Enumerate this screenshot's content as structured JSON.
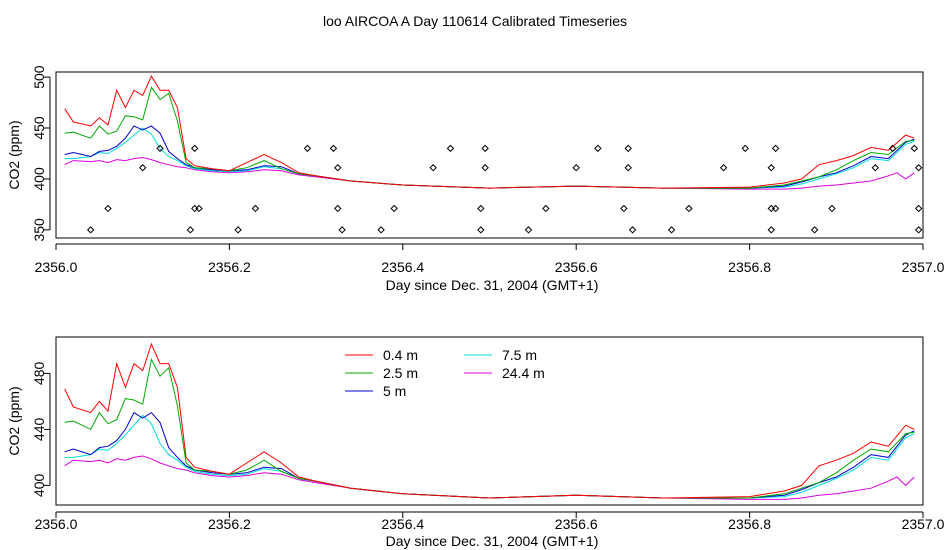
{
  "title": "loo AIRCOA A  Day 110614  Calibrated Timeseries",
  "chart_data": [
    {
      "type": "line",
      "xlabel": "Day since Dec. 31, 2004 (GMT+1)",
      "ylabel": "CO2 (ppm)",
      "xlim": [
        2356.0,
        2357.0
      ],
      "ylim": [
        342,
        505
      ],
      "x_ticks": [
        2356.0,
        2356.2,
        2356.4,
        2356.6,
        2356.8,
        2357.0
      ],
      "x_tick_labels": [
        "2356.0",
        "2356.2",
        "2356.4",
        "2356.6",
        "2356.8",
        "2357.0"
      ],
      "y_ticks": [
        350,
        400,
        450,
        500
      ],
      "y_tick_labels": [
        "350",
        "400",
        "450",
        "500"
      ],
      "series": [
        {
          "name": "0.4 m",
          "color": "#ff0000",
          "x": [
            2356.01,
            2356.02,
            2356.04,
            2356.05,
            2356.06,
            2356.07,
            2356.08,
            2356.09,
            2356.1,
            2356.11,
            2356.12,
            2356.13,
            2356.14,
            2356.15,
            2356.16,
            2356.18,
            2356.2,
            2356.22,
            2356.24,
            2356.26,
            2356.28,
            2356.3,
            2356.34,
            2356.4,
            2356.5,
            2356.6,
            2356.7,
            2356.8,
            2356.84,
            2356.86,
            2356.88,
            2356.9,
            2356.92,
            2356.94,
            2356.96,
            2356.98,
            2356.99
          ],
          "y": [
            469,
            456,
            452,
            460,
            453,
            487,
            470,
            487,
            482,
            501,
            487,
            487,
            470,
            420,
            413,
            410,
            408,
            416,
            424,
            416,
            406,
            403,
            398,
            394,
            391,
            393,
            391,
            392,
            396,
            400,
            414,
            418,
            423,
            431,
            428,
            443,
            440
          ]
        },
        {
          "name": "2.5 m",
          "color": "#00aa00",
          "x": [
            2356.01,
            2356.02,
            2356.04,
            2356.05,
            2356.06,
            2356.07,
            2356.08,
            2356.09,
            2356.1,
            2356.11,
            2356.12,
            2356.13,
            2356.14,
            2356.15,
            2356.16,
            2356.18,
            2356.2,
            2356.22,
            2356.24,
            2356.26,
            2356.28,
            2356.3,
            2356.34,
            2356.4,
            2356.5,
            2356.6,
            2356.7,
            2356.8,
            2356.84,
            2356.86,
            2356.88,
            2356.9,
            2356.92,
            2356.94,
            2356.96,
            2356.98,
            2356.99
          ],
          "y": [
            445,
            446,
            440,
            452,
            444,
            447,
            462,
            461,
            458,
            490,
            478,
            484,
            457,
            416,
            411,
            410,
            408,
            411,
            418,
            410,
            405,
            403,
            398,
            394,
            391,
            393,
            391,
            391,
            394,
            398,
            402,
            409,
            418,
            426,
            424,
            437,
            438
          ]
        },
        {
          "name": "5 m",
          "color": "#0000cc",
          "x": [
            2356.01,
            2356.02,
            2356.04,
            2356.05,
            2356.06,
            2356.07,
            2356.08,
            2356.09,
            2356.1,
            2356.11,
            2356.12,
            2356.13,
            2356.14,
            2356.15,
            2356.16,
            2356.18,
            2356.2,
            2356.22,
            2356.24,
            2356.26,
            2356.28,
            2356.3,
            2356.34,
            2356.4,
            2356.5,
            2356.6,
            2356.7,
            2356.8,
            2356.84,
            2356.86,
            2356.88,
            2356.9,
            2356.92,
            2356.94,
            2356.96,
            2356.98,
            2356.99
          ],
          "y": [
            424,
            426,
            422,
            427,
            428,
            432,
            440,
            452,
            448,
            452,
            445,
            427,
            420,
            414,
            411,
            409,
            408,
            409,
            413,
            412,
            405,
            403,
            398,
            394,
            391,
            393,
            391,
            391,
            393,
            397,
            402,
            406,
            413,
            422,
            420,
            436,
            439
          ]
        },
        {
          "name": "7.5 m",
          "color": "#00dddd",
          "x": [
            2356.01,
            2356.02,
            2356.04,
            2356.05,
            2356.06,
            2356.07,
            2356.08,
            2356.09,
            2356.1,
            2356.11,
            2356.12,
            2356.13,
            2356.14,
            2356.15,
            2356.16,
            2356.18,
            2356.2,
            2356.22,
            2356.24,
            2356.26,
            2356.28,
            2356.3,
            2356.34,
            2356.4,
            2356.5,
            2356.6,
            2356.7,
            2356.8,
            2356.84,
            2356.86,
            2356.88,
            2356.9,
            2356.92,
            2356.94,
            2356.96,
            2356.98,
            2356.99
          ],
          "y": [
            420,
            420,
            422,
            426,
            425,
            430,
            436,
            443,
            450,
            444,
            430,
            422,
            418,
            413,
            410,
            408,
            407,
            408,
            412,
            410,
            405,
            403,
            398,
            394,
            391,
            393,
            391,
            391,
            392,
            395,
            400,
            405,
            411,
            420,
            418,
            434,
            437
          ]
        },
        {
          "name": "24.4 m",
          "color": "#dd00dd",
          "x": [
            2356.01,
            2356.02,
            2356.04,
            2356.05,
            2356.06,
            2356.07,
            2356.08,
            2356.09,
            2356.1,
            2356.11,
            2356.12,
            2356.13,
            2356.14,
            2356.15,
            2356.16,
            2356.18,
            2356.2,
            2356.22,
            2356.24,
            2356.26,
            2356.28,
            2356.3,
            2356.34,
            2356.4,
            2356.5,
            2356.6,
            2356.7,
            2356.8,
            2356.84,
            2356.86,
            2356.88,
            2356.9,
            2356.92,
            2356.94,
            2356.96,
            2356.97,
            2356.98,
            2356.99
          ],
          "y": [
            414,
            418,
            417,
            418,
            416,
            419,
            418,
            420,
            421,
            419,
            416,
            414,
            412,
            411,
            409,
            407,
            406,
            407,
            409,
            408,
            404,
            402,
            398,
            394,
            391,
            393,
            391,
            390,
            390,
            391,
            393,
            394,
            396,
            398,
            403,
            406,
            400,
            406
          ]
        }
      ],
      "markers": {
        "symbol": "diamond-open",
        "color": "#000000",
        "x": [
          2356.04,
          2356.06,
          2356.1,
          2356.12,
          2356.155,
          2356.16,
          2356.16,
          2356.165,
          2356.21,
          2356.23,
          2356.29,
          2356.32,
          2356.325,
          2356.325,
          2356.33,
          2356.375,
          2356.39,
          2356.435,
          2356.455,
          2356.49,
          2356.49,
          2356.495,
          2356.495,
          2356.545,
          2356.565,
          2356.6,
          2356.625,
          2356.655,
          2356.66,
          2356.66,
          2356.665,
          2356.71,
          2356.73,
          2356.77,
          2356.795,
          2356.825,
          2356.825,
          2356.825,
          2356.83,
          2356.83,
          2356.875,
          2356.895,
          2356.945,
          2356.965,
          2356.99,
          2356.995,
          2356.995,
          2356.995
        ],
        "y": [
          350,
          371,
          411,
          430,
          350,
          371,
          430,
          371,
          350,
          371,
          430,
          430,
          371,
          411,
          350,
          350,
          371,
          411,
          430,
          350,
          371,
          411,
          430,
          350,
          371,
          411,
          430,
          371,
          411,
          430,
          350,
          350,
          371,
          411,
          430,
          350,
          371,
          411,
          430,
          371,
          350,
          371,
          411,
          430,
          430,
          411,
          371,
          350
        ]
      }
    },
    {
      "type": "line",
      "xlabel": "Day since Dec. 31, 2004 (GMT+1)",
      "ylabel": "CO2 (ppm)",
      "xlim": [
        2356.0,
        2357.0
      ],
      "ylim": [
        386,
        506
      ],
      "x_ticks": [
        2356.0,
        2356.2,
        2356.4,
        2356.6,
        2356.8,
        2357.0
      ],
      "x_tick_labels": [
        "2356.0",
        "2356.2",
        "2356.4",
        "2356.6",
        "2356.8",
        "2357.0"
      ],
      "y_ticks": [
        400,
        440,
        480
      ],
      "y_tick_labels": [
        "400",
        "440",
        "480"
      ],
      "legend": {
        "position": "top-center",
        "columns": 2
      },
      "series": [
        {
          "name": "0.4 m",
          "color": "#ff0000",
          "x": [
            2356.01,
            2356.02,
            2356.04,
            2356.05,
            2356.06,
            2356.07,
            2356.08,
            2356.09,
            2356.1,
            2356.11,
            2356.12,
            2356.13,
            2356.14,
            2356.15,
            2356.16,
            2356.18,
            2356.2,
            2356.22,
            2356.24,
            2356.26,
            2356.28,
            2356.3,
            2356.34,
            2356.4,
            2356.5,
            2356.6,
            2356.7,
            2356.8,
            2356.84,
            2356.86,
            2356.88,
            2356.9,
            2356.92,
            2356.94,
            2356.96,
            2356.98,
            2356.99
          ],
          "y": [
            469,
            456,
            452,
            460,
            453,
            487,
            470,
            487,
            482,
            501,
            487,
            487,
            470,
            420,
            413,
            410,
            408,
            416,
            424,
            416,
            406,
            403,
            398,
            394,
            391,
            393,
            391,
            392,
            396,
            400,
            414,
            418,
            423,
            431,
            428,
            443,
            440
          ]
        },
        {
          "name": "2.5 m",
          "color": "#00aa00",
          "x": [
            2356.01,
            2356.02,
            2356.04,
            2356.05,
            2356.06,
            2356.07,
            2356.08,
            2356.09,
            2356.1,
            2356.11,
            2356.12,
            2356.13,
            2356.14,
            2356.15,
            2356.16,
            2356.18,
            2356.2,
            2356.22,
            2356.24,
            2356.26,
            2356.28,
            2356.3,
            2356.34,
            2356.4,
            2356.5,
            2356.6,
            2356.7,
            2356.8,
            2356.84,
            2356.86,
            2356.88,
            2356.9,
            2356.92,
            2356.94,
            2356.96,
            2356.98,
            2356.99
          ],
          "y": [
            445,
            446,
            440,
            452,
            444,
            447,
            462,
            461,
            458,
            490,
            478,
            484,
            457,
            416,
            411,
            410,
            408,
            411,
            418,
            410,
            405,
            403,
            398,
            394,
            391,
            393,
            391,
            391,
            394,
            398,
            402,
            409,
            418,
            426,
            424,
            437,
            438
          ]
        },
        {
          "name": "5 m",
          "color": "#0000cc",
          "x": [
            2356.01,
            2356.02,
            2356.04,
            2356.05,
            2356.06,
            2356.07,
            2356.08,
            2356.09,
            2356.1,
            2356.11,
            2356.12,
            2356.13,
            2356.14,
            2356.15,
            2356.16,
            2356.18,
            2356.2,
            2356.22,
            2356.24,
            2356.26,
            2356.28,
            2356.3,
            2356.34,
            2356.4,
            2356.5,
            2356.6,
            2356.7,
            2356.8,
            2356.84,
            2356.86,
            2356.88,
            2356.9,
            2356.92,
            2356.94,
            2356.96,
            2356.98,
            2356.99
          ],
          "y": [
            424,
            426,
            422,
            427,
            428,
            432,
            440,
            452,
            448,
            452,
            445,
            427,
            420,
            414,
            411,
            409,
            408,
            409,
            413,
            412,
            405,
            403,
            398,
            394,
            391,
            393,
            391,
            391,
            393,
            397,
            402,
            406,
            413,
            422,
            420,
            436,
            439
          ]
        },
        {
          "name": "7.5 m",
          "color": "#00dddd",
          "x": [
            2356.01,
            2356.02,
            2356.04,
            2356.05,
            2356.06,
            2356.07,
            2356.08,
            2356.09,
            2356.1,
            2356.11,
            2356.12,
            2356.13,
            2356.14,
            2356.15,
            2356.16,
            2356.18,
            2356.2,
            2356.22,
            2356.24,
            2356.26,
            2356.28,
            2356.3,
            2356.34,
            2356.4,
            2356.5,
            2356.6,
            2356.7,
            2356.8,
            2356.84,
            2356.86,
            2356.88,
            2356.9,
            2356.92,
            2356.94,
            2356.96,
            2356.98,
            2356.99
          ],
          "y": [
            420,
            420,
            422,
            426,
            425,
            430,
            436,
            443,
            450,
            444,
            430,
            422,
            418,
            413,
            410,
            408,
            407,
            408,
            412,
            410,
            405,
            403,
            398,
            394,
            391,
            393,
            391,
            391,
            392,
            395,
            400,
            405,
            411,
            420,
            418,
            434,
            437
          ]
        },
        {
          "name": "24.4 m",
          "color": "#dd00dd",
          "x": [
            2356.01,
            2356.02,
            2356.04,
            2356.05,
            2356.06,
            2356.07,
            2356.08,
            2356.09,
            2356.1,
            2356.11,
            2356.12,
            2356.13,
            2356.14,
            2356.15,
            2356.16,
            2356.18,
            2356.2,
            2356.22,
            2356.24,
            2356.26,
            2356.28,
            2356.3,
            2356.34,
            2356.4,
            2356.5,
            2356.6,
            2356.7,
            2356.8,
            2356.84,
            2356.86,
            2356.88,
            2356.9,
            2356.92,
            2356.94,
            2356.96,
            2356.97,
            2356.98,
            2356.99
          ],
          "y": [
            414,
            418,
            417,
            418,
            416,
            419,
            418,
            420,
            421,
            419,
            416,
            414,
            412,
            411,
            409,
            407,
            406,
            407,
            409,
            408,
            404,
            402,
            398,
            394,
            391,
            393,
            391,
            390,
            390,
            391,
            393,
            394,
            396,
            398,
            403,
            406,
            400,
            406
          ]
        }
      ]
    }
  ]
}
